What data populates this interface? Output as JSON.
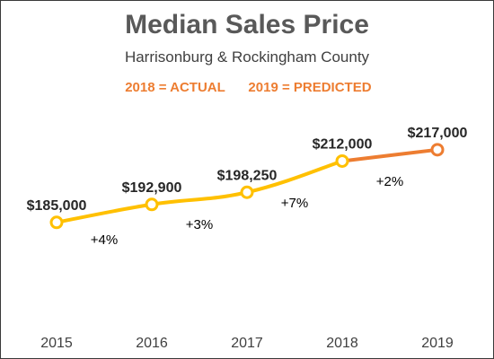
{
  "chart_data": {
    "type": "line",
    "title": "Median Sales Price",
    "subtitle": "Harrisonburg & Rockingham County",
    "annotations": {
      "actual_label": "2018 = ACTUAL",
      "predicted_label": "2019 = PREDICTED"
    },
    "categories": [
      "2015",
      "2016",
      "2017",
      "2018",
      "2019"
    ],
    "values": [
      185000,
      192900,
      198250,
      212000,
      217000
    ],
    "data_labels": [
      "$185,000",
      "$192,900",
      "$198,250",
      "$212,000",
      "$217,000"
    ],
    "change_labels": [
      "+4%",
      "+3%",
      "+7%",
      "+2%"
    ],
    "predicted_from_index": 3,
    "xlabel": "",
    "ylabel": "",
    "ylim": [
      160000,
      245000
    ],
    "grid": false,
    "colors": {
      "actual": "#FFC000",
      "predicted": "#ED7D31",
      "legend_text": "#ED7D31",
      "title": "#595959"
    }
  }
}
